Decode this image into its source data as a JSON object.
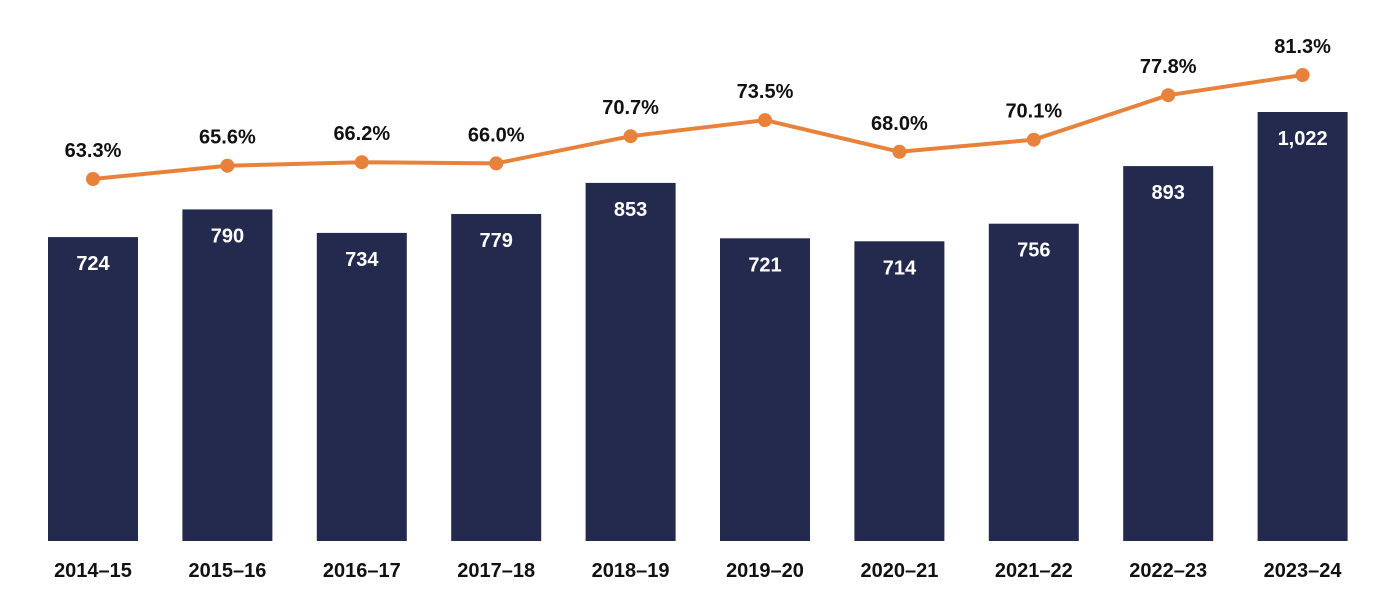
{
  "chart_data": {
    "type": "bar",
    "categories": [
      "2014–15",
      "2015–16",
      "2016–17",
      "2017–18",
      "2018–19",
      "2019–20",
      "2020–21",
      "2021–22",
      "2022–23",
      "2023–24"
    ],
    "series": [
      {
        "type": "bar",
        "values": [
          724,
          790,
          734,
          779,
          853,
          721,
          714,
          756,
          893,
          1022
        ],
        "labels": [
          "724",
          "790",
          "734",
          "779",
          "853",
          "721",
          "714",
          "756",
          "893",
          "1,022"
        ],
        "color": "#232a4e"
      },
      {
        "type": "line",
        "values": [
          63.3,
          65.6,
          66.2,
          66.0,
          70.7,
          73.5,
          68.0,
          70.1,
          77.8,
          81.3
        ],
        "labels": [
          "63.3%",
          "65.6%",
          "66.2%",
          "66.0%",
          "70.7%",
          "73.5%",
          "68.0%",
          "70.1%",
          "77.8%",
          "81.3%"
        ],
        "color": "#e8823a"
      }
    ],
    "bar_ylim": [
      0,
      1022
    ],
    "line_ylim": [
      0,
      81.3
    ],
    "grid": false,
    "legend": "none"
  }
}
